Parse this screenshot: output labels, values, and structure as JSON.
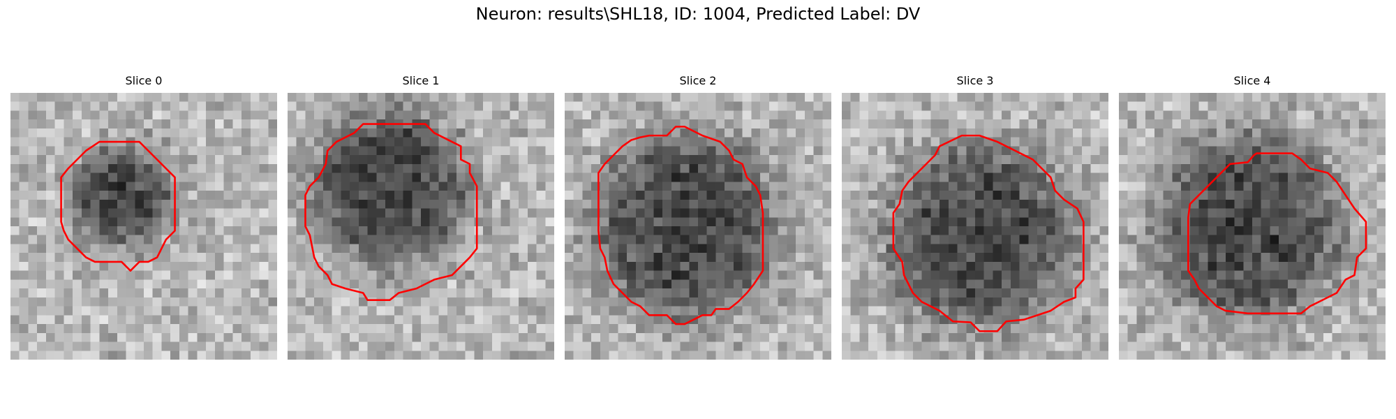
{
  "figure": {
    "title": "Neuron: results\\SHL18, ID: 1004, Predicted Label: DV"
  },
  "colors": {
    "background": "#ffffff",
    "contour": "#ff0000",
    "colormap": "gray"
  },
  "image_grid": 30,
  "slices": [
    {
      "title": "Slice 0",
      "blob": {
        "cx": 12.5,
        "cy": 11.5,
        "r": 5.5
      },
      "contour": [
        [
          13.5,
          5.5
        ],
        [
          14.5,
          5.5
        ],
        [
          15.5,
          6.5
        ],
        [
          16.5,
          7.5
        ],
        [
          17.5,
          8.5
        ],
        [
          18.5,
          9.5
        ],
        [
          18.5,
          11
        ],
        [
          18.5,
          13
        ],
        [
          18.5,
          15.5
        ],
        [
          17.5,
          16.5
        ],
        [
          17,
          17.5
        ],
        [
          16.5,
          18.5
        ],
        [
          15.5,
          19
        ],
        [
          14.5,
          19
        ],
        [
          13.5,
          20
        ],
        [
          12.5,
          19
        ],
        [
          11.5,
          19
        ],
        [
          9.5,
          19
        ],
        [
          8.5,
          18.5
        ],
        [
          7.5,
          17.5
        ],
        [
          6.5,
          16.5
        ],
        [
          6,
          15.5
        ],
        [
          5.7,
          14.5
        ],
        [
          5.7,
          12
        ],
        [
          5.7,
          9.5
        ],
        [
          6.5,
          8.5
        ],
        [
          7.5,
          7.5
        ],
        [
          8.5,
          6.5
        ],
        [
          10,
          5.5
        ],
        [
          12,
          5.5
        ]
      ]
    },
    {
      "title": "Slice 1",
      "blob": {
        "cx": 11.5,
        "cy": 10.5,
        "r": 8.5
      },
      "contour": [
        [
          8.5,
          3.5
        ],
        [
          10.5,
          3.5
        ],
        [
          13.5,
          3.5
        ],
        [
          15.5,
          3.5
        ],
        [
          16.5,
          4.5
        ],
        [
          18.5,
          5.5
        ],
        [
          19.5,
          6
        ],
        [
          19.5,
          7.5
        ],
        [
          20.5,
          8
        ],
        [
          20.5,
          9
        ],
        [
          21.3,
          10.5
        ],
        [
          21.3,
          13
        ],
        [
          21.3,
          17.5
        ],
        [
          20.5,
          18.5
        ],
        [
          19.5,
          19.5
        ],
        [
          18.5,
          20.5
        ],
        [
          16.5,
          21
        ],
        [
          15.5,
          21.5
        ],
        [
          14.5,
          22
        ],
        [
          12.5,
          22.5
        ],
        [
          11.5,
          23.3
        ],
        [
          9,
          23.3
        ],
        [
          8.5,
          22.5
        ],
        [
          6.5,
          22
        ],
        [
          5,
          21.5
        ],
        [
          4.5,
          20.5
        ],
        [
          3.5,
          19.5
        ],
        [
          3,
          18.5
        ],
        [
          2.8,
          17.5
        ],
        [
          2.5,
          16
        ],
        [
          2,
          15
        ],
        [
          2,
          13
        ],
        [
          2,
          11.5
        ],
        [
          2.5,
          10.5
        ],
        [
          3.5,
          9.5
        ],
        [
          4.3,
          8
        ],
        [
          4.5,
          6.5
        ],
        [
          5.5,
          5.5
        ],
        [
          6.5,
          5
        ],
        [
          7.5,
          4.5
        ]
      ]
    },
    {
      "title": "Slice 2",
      "blob": {
        "cx": 13.5,
        "cy": 15,
        "r": 10
      },
      "contour": [
        [
          13.5,
          3.8
        ],
        [
          15.5,
          4.8
        ],
        [
          17.5,
          5.5
        ],
        [
          18.5,
          6.5
        ],
        [
          19,
          7.5
        ],
        [
          20,
          8
        ],
        [
          20.5,
          9.5
        ],
        [
          21.5,
          10.5
        ],
        [
          22,
          11.5
        ],
        [
          22.3,
          13.5
        ],
        [
          22.3,
          16.5
        ],
        [
          22.3,
          20
        ],
        [
          21.3,
          21.5
        ],
        [
          20.5,
          22.5
        ],
        [
          19.5,
          23.5
        ],
        [
          18.5,
          24.3
        ],
        [
          17,
          24.3
        ],
        [
          16.5,
          25
        ],
        [
          15.5,
          25
        ],
        [
          13.5,
          26
        ],
        [
          12.5,
          26
        ],
        [
          11.5,
          25
        ],
        [
          9.5,
          25
        ],
        [
          8.5,
          24
        ],
        [
          7.5,
          23.5
        ],
        [
          6.5,
          22.5
        ],
        [
          5.5,
          21.5
        ],
        [
          4.8,
          20
        ],
        [
          4.5,
          18.5
        ],
        [
          4,
          17.5
        ],
        [
          3.8,
          15.5
        ],
        [
          3.8,
          12.5
        ],
        [
          3.8,
          9
        ],
        [
          4.5,
          8
        ],
        [
          5.5,
          7
        ],
        [
          6.5,
          6
        ],
        [
          7.5,
          5.3
        ],
        [
          8.5,
          5
        ],
        [
          9.5,
          4.8
        ],
        [
          11.5,
          4.8
        ],
        [
          12.5,
          3.8
        ]
      ]
    },
    {
      "title": "Slice 3",
      "blob": {
        "cx": 15.5,
        "cy": 16,
        "r": 10
      },
      "contour": [
        [
          13.5,
          4.8
        ],
        [
          15.5,
          4.8
        ],
        [
          17.5,
          5.5
        ],
        [
          19.5,
          6.5
        ],
        [
          21.5,
          7.5
        ],
        [
          22.5,
          8.5
        ],
        [
          23.5,
          9.5
        ],
        [
          24,
          11
        ],
        [
          25,
          12
        ],
        [
          26.5,
          13
        ],
        [
          27.2,
          14.5
        ],
        [
          27.2,
          17.5
        ],
        [
          27.2,
          21
        ],
        [
          26.3,
          22
        ],
        [
          26.3,
          23
        ],
        [
          25,
          23.5
        ],
        [
          23.5,
          24.5
        ],
        [
          22,
          25
        ],
        [
          20.5,
          25.5
        ],
        [
          18.5,
          25.7
        ],
        [
          17.5,
          26.8
        ],
        [
          15.5,
          26.8
        ],
        [
          14.5,
          25.8
        ],
        [
          12.5,
          25.7
        ],
        [
          11,
          24.5
        ],
        [
          10,
          24
        ],
        [
          9,
          23.5
        ],
        [
          8,
          22.5
        ],
        [
          7.5,
          21.5
        ],
        [
          7,
          20.5
        ],
        [
          6.8,
          19
        ],
        [
          5.8,
          17.5
        ],
        [
          5.8,
          13.5
        ],
        [
          6.5,
          12.5
        ],
        [
          6.8,
          11
        ],
        [
          7.5,
          10
        ],
        [
          8.5,
          9
        ],
        [
          9.5,
          8
        ],
        [
          10.5,
          7
        ],
        [
          11,
          6
        ]
      ]
    },
    {
      "title": "Slice 4",
      "blob": {
        "cx": 14.5,
        "cy": 15,
        "r": 10
      },
      "contour": [
        [
          15.5,
          6.8
        ],
        [
          17.5,
          6.8
        ],
        [
          19.5,
          6.8
        ],
        [
          20.5,
          7.5
        ],
        [
          21.5,
          8.5
        ],
        [
          23.5,
          9
        ],
        [
          24.5,
          10
        ],
        [
          25.5,
          11.5
        ],
        [
          26.5,
          13
        ],
        [
          27.8,
          14.5
        ],
        [
          27.8,
          15.5
        ],
        [
          27.8,
          17.5
        ],
        [
          26.8,
          18.5
        ],
        [
          26.5,
          20.5
        ],
        [
          25.5,
          21
        ],
        [
          24.5,
          22.5
        ],
        [
          23.5,
          23
        ],
        [
          22.5,
          23.5
        ],
        [
          21.5,
          24
        ],
        [
          20.5,
          24.8
        ],
        [
          17.5,
          24.8
        ],
        [
          14.5,
          24.8
        ],
        [
          12,
          24.5
        ],
        [
          11,
          24
        ],
        [
          10,
          23
        ],
        [
          9,
          22
        ],
        [
          8.5,
          21
        ],
        [
          7.8,
          20
        ],
        [
          7.8,
          17.5
        ],
        [
          7.8,
          14
        ],
        [
          8,
          12.5
        ],
        [
          9,
          11.5
        ],
        [
          10,
          10.5
        ],
        [
          11.5,
          9
        ],
        [
          12.5,
          8
        ],
        [
          14.5,
          7.8
        ],
        [
          15.2,
          7
        ]
      ]
    }
  ]
}
